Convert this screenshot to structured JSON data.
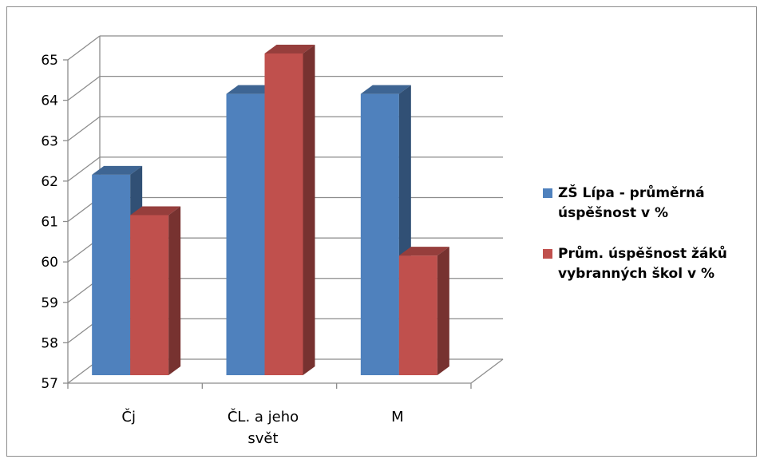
{
  "chart_data": {
    "type": "bar",
    "categories": [
      [
        "Čj"
      ],
      [
        "ČL. a jeho",
        "svět"
      ],
      [
        "M"
      ]
    ],
    "series": [
      {
        "name": "ZŠ Lípa - průměrná úspěšnost v %",
        "values": [
          62,
          64,
          64
        ],
        "color": "#4F81BD"
      },
      {
        "name": "Prům. úspěšnost žáků vybranných škol v %",
        "values": [
          61,
          65,
          60
        ],
        "color": "#C0504D"
      }
    ],
    "ylim": [
      57,
      65
    ],
    "yticks": [
      57,
      58,
      59,
      60,
      61,
      62,
      63,
      64,
      65
    ],
    "grid": true,
    "legend_position": "right",
    "style": "3d-clustered-column"
  },
  "legend": {
    "items": [
      {
        "lines": [
          "ZŠ Lípa - průměrná",
          "úspěšnost v %"
        ],
        "color": "#4F81BD"
      },
      {
        "lines": [
          "Prům. úspěšnost žáků",
          "vybranných škol v %"
        ],
        "color": "#C0504D"
      }
    ]
  }
}
